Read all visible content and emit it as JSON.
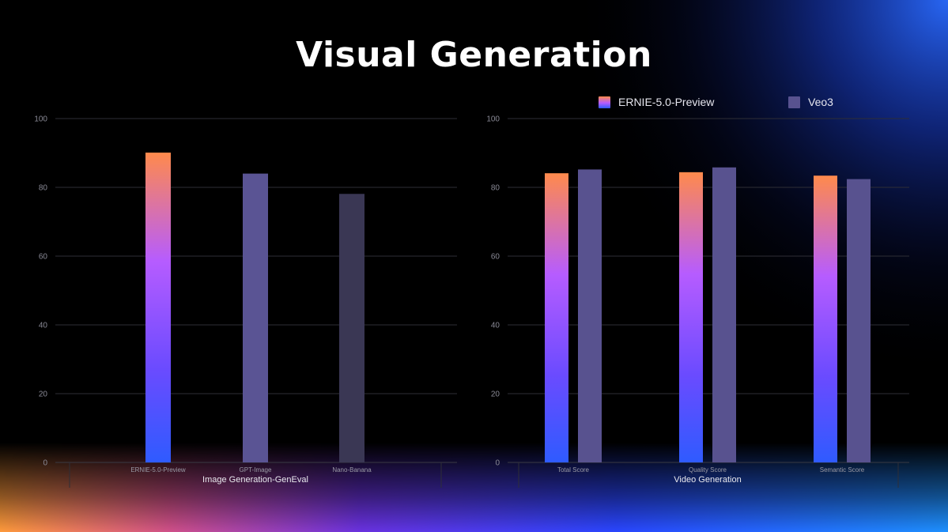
{
  "title": "Visual Generation",
  "legend": [
    {
      "name": "ERNIE-5.0-Preview"
    },
    {
      "name": "Veo3"
    }
  ],
  "colors": {
    "ernie_top": "#ff8a4c",
    "ernie_mid": "#b65cff",
    "ernie_bottom": "#2f5bff",
    "gpt_image": "#5a5494",
    "veo3": "#58528f",
    "nano_banana": "#3a3754",
    "grid": "#2e2e36"
  },
  "chart_data": [
    {
      "type": "bar",
      "categories": [
        "ERNIE-5.0-Preview",
        "GPT-Image",
        "Nano-Banana"
      ],
      "values": [
        90.1,
        84,
        78.1
      ],
      "xlabel": "Image Generation-GenEval",
      "ylabel": "",
      "ylim": [
        0,
        100
      ],
      "yticks": [
        0,
        20,
        40,
        60,
        80,
        100
      ],
      "grid": true,
      "legend": "none"
    },
    {
      "type": "bar",
      "categories": [
        "Total Score",
        "Quality Score",
        "Semantic Score"
      ],
      "series": [
        {
          "name": "ERNIE-5.0-Preview",
          "values": [
            84.1,
            84.4,
            83.4
          ]
        },
        {
          "name": "Veo3",
          "values": [
            85.2,
            85.8,
            82.4
          ]
        }
      ],
      "xlabel": "Video Generation",
      "ylabel": "",
      "ylim": [
        0,
        100
      ],
      "yticks": [
        0,
        20,
        40,
        60,
        80,
        100
      ],
      "grid": true,
      "legend": "top"
    }
  ]
}
